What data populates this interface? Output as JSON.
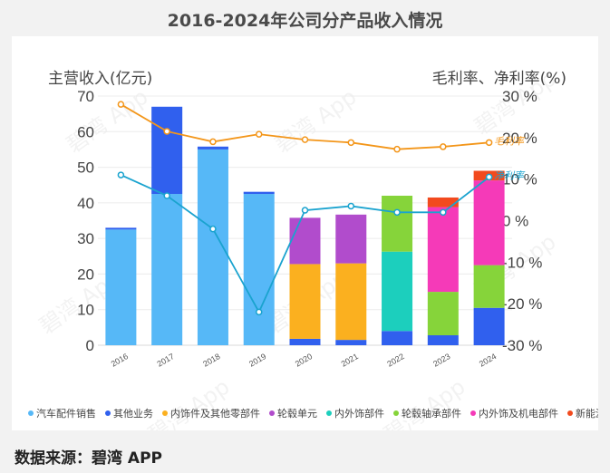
{
  "title": "2016-2024年公司分产品收入情况",
  "source": "数据来源：碧湾 APP",
  "watermark": "碧湾 App",
  "chart_data": {
    "type": "bar",
    "stacked": true,
    "categories": [
      "2016",
      "2017",
      "2018",
      "2019",
      "2020",
      "2021",
      "2022",
      "2023",
      "2024"
    ],
    "ylabel": "主营收入(亿元)",
    "y2label": "毛利率、净利率(%)",
    "ylim": [
      0,
      70
    ],
    "yticks": [
      0,
      10,
      20,
      30,
      40,
      50,
      60,
      70
    ],
    "y2lim": [
      -30,
      30
    ],
    "y2ticks": [
      -30,
      -20,
      -10,
      0,
      10,
      20,
      30
    ],
    "y2tick_suffix": " %",
    "series": [
      {
        "name": "汽车配件销售",
        "color": "#56b8f7",
        "values": [
          32.5,
          42.5,
          55.0,
          42.5,
          0,
          0,
          0,
          0,
          0
        ]
      },
      {
        "name": "其他业务",
        "color": "#3060ee",
        "values": [
          0.5,
          24.5,
          0.8,
          0.6,
          1.8,
          1.5,
          4.0,
          2.8,
          10.5
        ]
      },
      {
        "name": "内饰件及其他零部件",
        "color": "#fbb01f",
        "values": [
          0,
          0,
          0,
          0,
          21.0,
          21.5,
          0,
          0,
          0
        ]
      },
      {
        "name": "轮毂单元",
        "color": "#b14ccc",
        "values": [
          0,
          0,
          0,
          0,
          13.0,
          13.7,
          0,
          0,
          0
        ]
      },
      {
        "name": "内外饰部件",
        "color": "#1ccfbd",
        "values": [
          0,
          0,
          0,
          0,
          0,
          0,
          22.3,
          0,
          0
        ]
      },
      {
        "name": "轮毂轴承部件",
        "color": "#86d43a",
        "values": [
          0,
          0,
          0,
          0,
          0,
          0,
          15.7,
          12.2,
          12.0
        ]
      },
      {
        "name": "内外饰及机电部件",
        "color": "#f53ab8",
        "values": [
          0,
          0,
          0,
          0,
          0,
          0,
          0,
          23.8,
          23.8
        ]
      },
      {
        "name": "新能源电机",
        "color": "#f24a1e",
        "values": [
          0,
          0,
          0,
          0,
          0,
          0,
          0,
          2.7,
          2.7
        ]
      }
    ],
    "lines": [
      {
        "name": "毛利率",
        "color": "#f3961a",
        "axis": "y2",
        "values": [
          28.0,
          21.5,
          19.0,
          20.8,
          19.5,
          18.8,
          17.2,
          17.8,
          18.8
        ]
      },
      {
        "name": "净利率",
        "color": "#1aa3cf",
        "axis": "y2",
        "values": [
          11.0,
          6.0,
          -2.0,
          -22.0,
          2.5,
          3.5,
          2.0,
          2.0,
          10.5
        ]
      }
    ],
    "legend_position": "bottom"
  }
}
